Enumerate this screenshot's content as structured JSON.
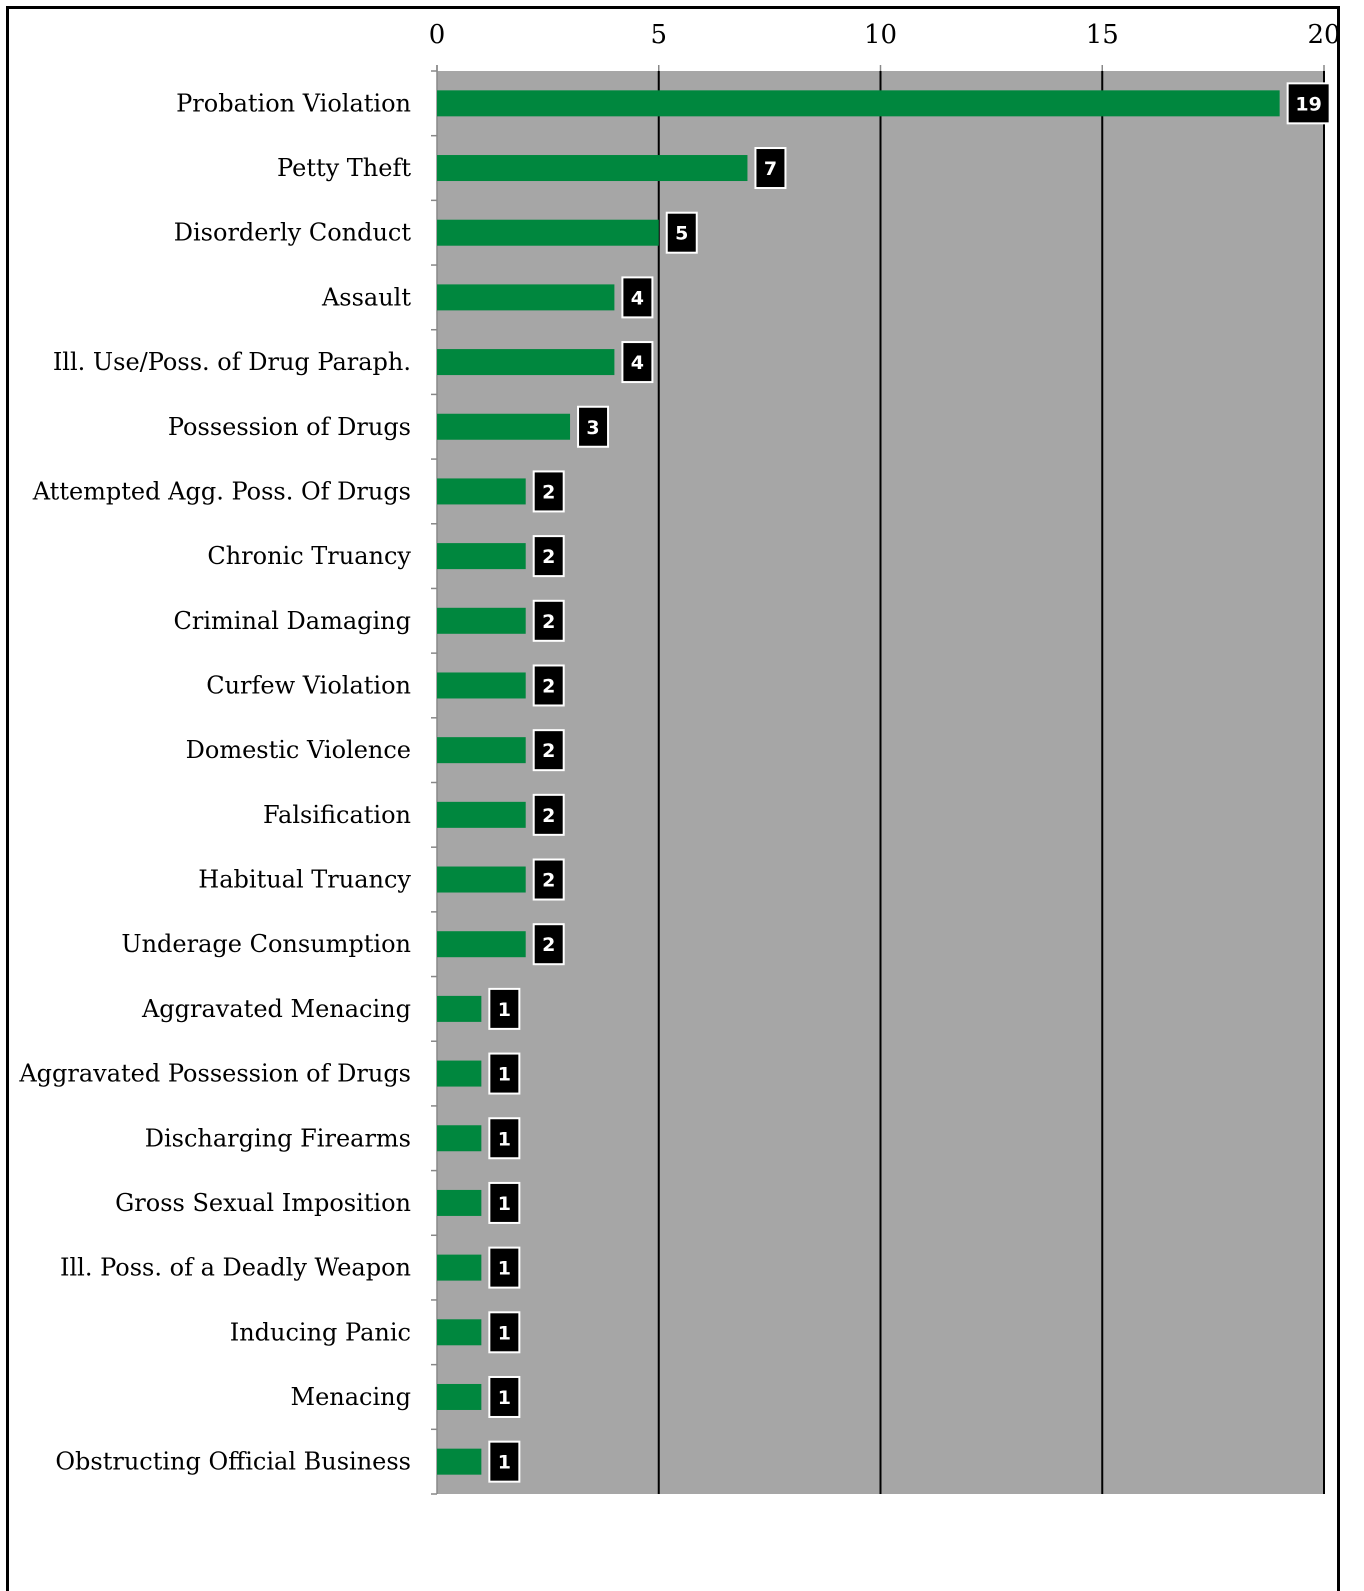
{
  "chart_data": {
    "type": "bar",
    "orientation": "horizontal",
    "categories": [
      "Probation Violation",
      "Petty Theft",
      "Disorderly Conduct",
      "Assault",
      "Ill. Use/Poss. of Drug Paraph.",
      "Possession of Drugs",
      "Attempted Agg. Poss. Of Drugs",
      "Chronic Truancy",
      "Criminal Damaging",
      "Curfew Violation",
      "Domestic Violence",
      "Falsification",
      "Habitual Truancy",
      "Underage Consumption",
      "Aggravated Menacing",
      "Aggravated Possession of Drugs",
      "Discharging Firearms",
      "Gross Sexual Imposition",
      "Ill. Poss. of a Deadly Weapon",
      "Inducing Panic",
      "Menacing",
      "Obstructing Official Business"
    ],
    "values": [
      19,
      7,
      5,
      4,
      4,
      3,
      2,
      2,
      2,
      2,
      2,
      2,
      2,
      2,
      1,
      1,
      1,
      1,
      1,
      1,
      1,
      1
    ],
    "xlim": [
      0,
      20
    ],
    "xticks": [
      0,
      5,
      10,
      15,
      20
    ],
    "x_axis_position": "top",
    "grid": true,
    "legend": "none",
    "title": "",
    "xlabel": "",
    "ylabel": ""
  },
  "colors": {
    "bar": "#00873E",
    "plot_background": "#A6A6A6",
    "gridline": "#000000",
    "label_box": "#000000",
    "label_text": "#FFFFFF"
  }
}
